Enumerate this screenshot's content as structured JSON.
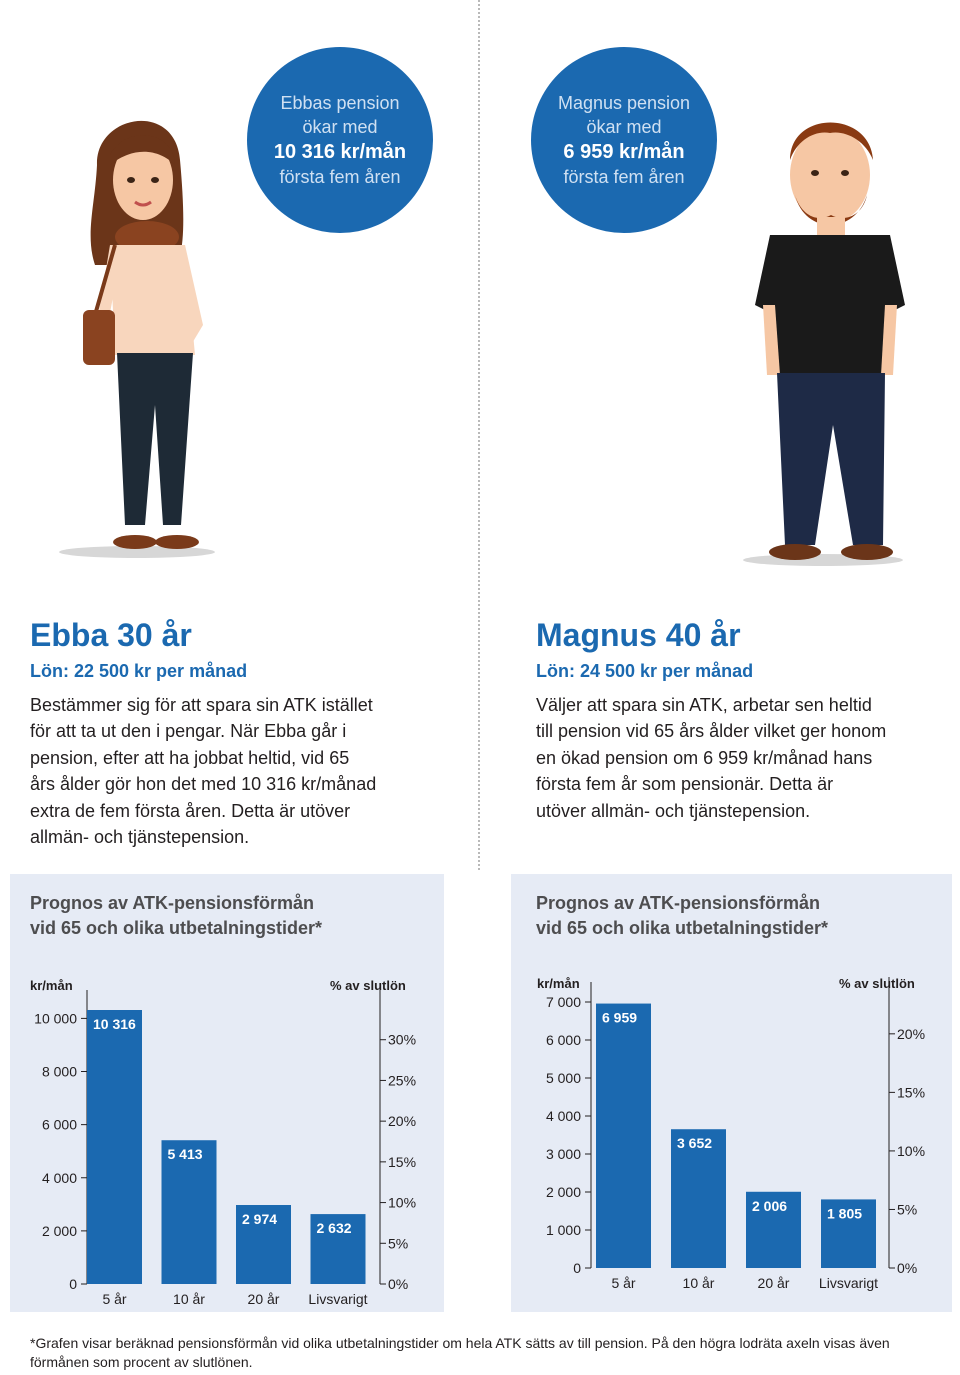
{
  "ebba": {
    "badge": {
      "line1": "Ebbas pension",
      "line2": "ökar med",
      "amount": "10 316 kr/mån",
      "line4": "första fem åren"
    },
    "name": "Ebba 30 år",
    "salary": "Lön: 22 500 kr per månad",
    "desc_lines": [
      "Bestämmer sig för att spara sin ATK istället",
      "för att ta ut den i pengar. När Ebba går i",
      "pension, efter att ha jobbat heltid, vid 65",
      "års ålder gör hon det med 10 316 kr/månad",
      "extra de fem första åren. Detta är utöver",
      "allmän- och tjänstepension."
    ]
  },
  "magnus": {
    "badge": {
      "line1": "Magnus pension",
      "line2": "ökar med",
      "amount": "6 959 kr/mån",
      "line4": "första fem åren"
    },
    "name": "Magnus 40 år",
    "salary": "Lön: 24 500 kr per månad",
    "desc_lines": [
      "Väljer att spara sin ATK, arbetar sen heltid",
      "till pension vid 65 års ålder vilket ger honom",
      "en ökad pension om 6 959 kr/månad hans",
      "första fem år som pensionär. Detta är",
      "utöver allmän- och tjänstepension."
    ]
  },
  "chart_data": [
    {
      "type": "bar",
      "title_lines": [
        "Prognos av ATK-pensionsförmån",
        "vid 65 och olika utbetalningstider*"
      ],
      "ylabel": "kr/mån",
      "y2label": "% av slutlön",
      "categories": [
        "5 år",
        "10 år",
        "20 år",
        "Livsvarigt"
      ],
      "values": [
        10316,
        5413,
        2974,
        2632
      ],
      "value_labels": [
        "10 316",
        "5 413",
        "2 974",
        "2 632"
      ],
      "ylim": [
        0,
        10316
      ],
      "yticks": [
        0,
        2000,
        4000,
        6000,
        8000,
        10000
      ],
      "ytick_labels": [
        "0",
        "2 000",
        "4 000",
        "6 000",
        "8 000",
        "10 000"
      ],
      "y2ticks": [
        0,
        5,
        10,
        15,
        20,
        25,
        30
      ],
      "y2tick_labels": [
        "0%",
        "5%",
        "10%",
        "15%",
        "20%",
        "25%",
        "30%"
      ],
      "y2lim": [
        0,
        35
      ],
      "color": "#1b69b0"
    },
    {
      "type": "bar",
      "title_lines": [
        "Prognos av ATK-pensionsförmån",
        "vid 65 och olika utbetalningstider*"
      ],
      "ylabel": "kr/mån",
      "y2label": "% av slutlön",
      "categories": [
        "5 år",
        "10 år",
        "20 år",
        "Livsvarigt"
      ],
      "values": [
        6959,
        3652,
        2006,
        1805
      ],
      "value_labels": [
        "6 959",
        "3 652",
        "2 006",
        "1 805"
      ],
      "ylim": [
        0,
        7000
      ],
      "yticks": [
        0,
        1000,
        2000,
        3000,
        4000,
        5000,
        6000,
        7000
      ],
      "ytick_labels": [
        "0",
        "1 000",
        "2 000",
        "3 000",
        "4 000",
        "5 000",
        "6 000",
        "7 000"
      ],
      "y2ticks": [
        0,
        5,
        10,
        15,
        20
      ],
      "y2tick_labels": [
        "0%",
        "5%",
        "10%",
        "15%",
        "20%"
      ],
      "y2lim": [
        0,
        24
      ],
      "color": "#1b69b0"
    }
  ],
  "footnote": "*Grafen visar beräknad pensionsförmån vid olika utbetalningstider om hela ATK sätts av till pension. På den högra lodräta axeln visas även förmånen som procent av slutlönen."
}
